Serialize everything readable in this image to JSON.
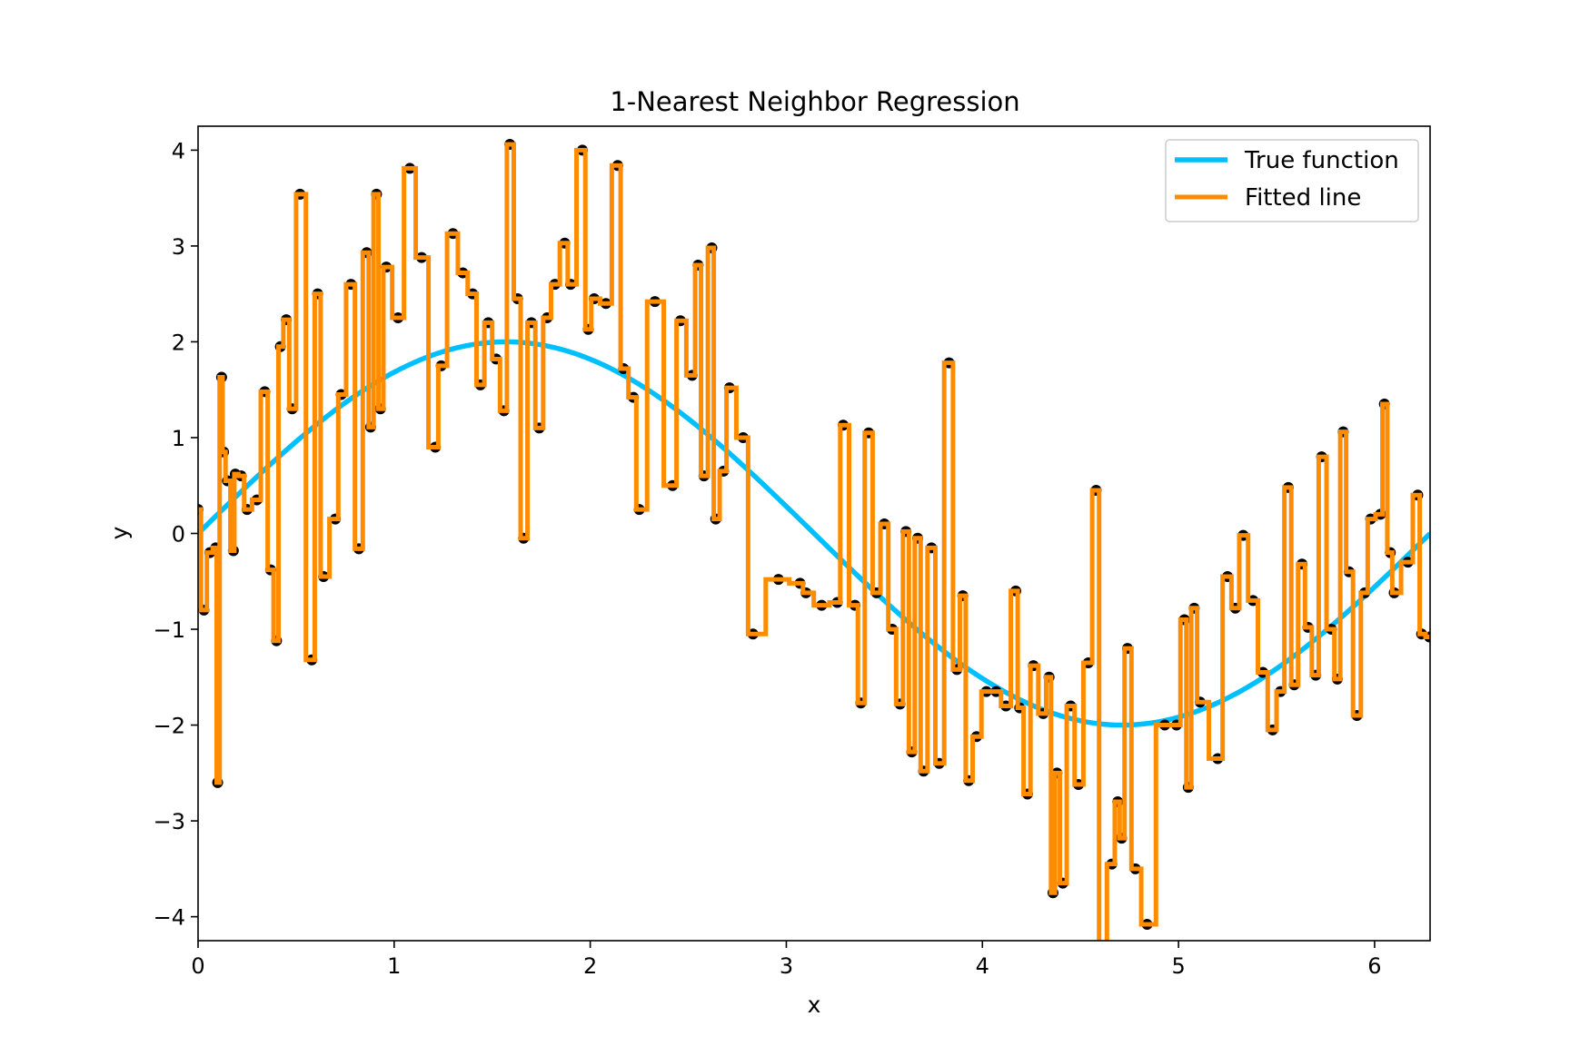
{
  "chart_data": {
    "type": "line",
    "title": "1-Nearest Neighbor Regression",
    "xlabel": "x",
    "ylabel": "y",
    "xlim": [
      0,
      6.283
    ],
    "ylim": [
      -4.25,
      4.25
    ],
    "xticks": [
      0,
      1,
      2,
      3,
      4,
      5,
      6
    ],
    "xtick_labels": [
      "0",
      "1",
      "2",
      "3",
      "4",
      "5",
      "6"
    ],
    "yticks": [
      -4,
      -3,
      -2,
      -1,
      0,
      1,
      2,
      3,
      4
    ],
    "ytick_labels": [
      "−4",
      "−3",
      "−2",
      "−1",
      "0",
      "1",
      "2",
      "3",
      "4"
    ],
    "grid": false,
    "legend_position": "upper-right",
    "series": [
      {
        "name": "True function",
        "kind": "line",
        "color": "#00bfff",
        "function": "2*sin(x)"
      },
      {
        "name": "Fitted line",
        "kind": "step",
        "color": "#ff8c00"
      },
      {
        "kind": "scatter",
        "color": "#000000"
      }
    ],
    "points": [
      [
        0.0,
        0.25
      ],
      [
        0.03,
        -0.8
      ],
      [
        0.06,
        -0.2
      ],
      [
        0.09,
        -0.15
      ],
      [
        0.1,
        -2.6
      ],
      [
        0.12,
        1.63
      ],
      [
        0.13,
        0.85
      ],
      [
        0.15,
        0.55
      ],
      [
        0.18,
        -0.18
      ],
      [
        0.19,
        0.62
      ],
      [
        0.22,
        0.6
      ],
      [
        0.25,
        0.25
      ],
      [
        0.3,
        0.35
      ],
      [
        0.34,
        1.48
      ],
      [
        0.37,
        -0.38
      ],
      [
        0.4,
        -1.12
      ],
      [
        0.42,
        1.95
      ],
      [
        0.45,
        2.23
      ],
      [
        0.48,
        1.3
      ],
      [
        0.52,
        3.54
      ],
      [
        0.58,
        -1.32
      ],
      [
        0.61,
        2.5
      ],
      [
        0.64,
        -0.45
      ],
      [
        0.7,
        0.15
      ],
      [
        0.73,
        1.45
      ],
      [
        0.78,
        2.6
      ],
      [
        0.82,
        -0.16
      ],
      [
        0.86,
        2.93
      ],
      [
        0.88,
        1.11
      ],
      [
        0.91,
        3.54
      ],
      [
        0.93,
        1.3
      ],
      [
        0.96,
        2.78
      ],
      [
        1.02,
        2.25
      ],
      [
        1.08,
        3.81
      ],
      [
        1.14,
        2.88
      ],
      [
        1.21,
        0.9
      ],
      [
        1.24,
        1.75
      ],
      [
        1.3,
        3.13
      ],
      [
        1.35,
        2.72
      ],
      [
        1.4,
        2.5
      ],
      [
        1.44,
        1.55
      ],
      [
        1.48,
        2.2
      ],
      [
        1.52,
        1.82
      ],
      [
        1.56,
        1.28
      ],
      [
        1.59,
        4.06
      ],
      [
        1.63,
        2.45
      ],
      [
        1.66,
        -0.05
      ],
      [
        1.7,
        2.2
      ],
      [
        1.74,
        1.1
      ],
      [
        1.78,
        2.25
      ],
      [
        1.82,
        2.6
      ],
      [
        1.87,
        3.03
      ],
      [
        1.9,
        2.6
      ],
      [
        1.96,
        4.0
      ],
      [
        1.99,
        2.13
      ],
      [
        2.02,
        2.45
      ],
      [
        2.08,
        2.4
      ],
      [
        2.14,
        3.84
      ],
      [
        2.17,
        1.72
      ],
      [
        2.22,
        1.42
      ],
      [
        2.25,
        0.25
      ],
      [
        2.33,
        2.42
      ],
      [
        2.42,
        0.5
      ],
      [
        2.46,
        2.22
      ],
      [
        2.52,
        1.65
      ],
      [
        2.55,
        2.8
      ],
      [
        2.58,
        0.6
      ],
      [
        2.62,
        2.98
      ],
      [
        2.64,
        0.15
      ],
      [
        2.68,
        0.65
      ],
      [
        2.71,
        1.52
      ],
      [
        2.78,
        1.0
      ],
      [
        2.83,
        -1.05
      ],
      [
        2.96,
        -0.48
      ],
      [
        3.07,
        -0.52
      ],
      [
        3.1,
        -0.62
      ],
      [
        3.18,
        -0.75
      ],
      [
        3.26,
        -0.72
      ],
      [
        3.29,
        1.13
      ],
      [
        3.35,
        -0.75
      ],
      [
        3.38,
        -1.77
      ],
      [
        3.42,
        1.05
      ],
      [
        3.46,
        -0.62
      ],
      [
        3.5,
        0.1
      ],
      [
        3.54,
        -1.0
      ],
      [
        3.58,
        -1.78
      ],
      [
        3.61,
        0.02
      ],
      [
        3.64,
        -2.28
      ],
      [
        3.67,
        -0.05
      ],
      [
        3.7,
        -2.48
      ],
      [
        3.74,
        -0.15
      ],
      [
        3.78,
        -2.4
      ],
      [
        3.83,
        1.78
      ],
      [
        3.87,
        -1.42
      ],
      [
        3.9,
        -0.65
      ],
      [
        3.93,
        -2.58
      ],
      [
        3.97,
        -2.12
      ],
      [
        4.02,
        -1.65
      ],
      [
        4.07,
        -1.65
      ],
      [
        4.12,
        -1.8
      ],
      [
        4.17,
        -0.6
      ],
      [
        4.19,
        -1.82
      ],
      [
        4.23,
        -2.72
      ],
      [
        4.26,
        -1.38
      ],
      [
        4.31,
        -1.88
      ],
      [
        4.34,
        -1.5
      ],
      [
        4.36,
        -3.75
      ],
      [
        4.38,
        -2.5
      ],
      [
        4.41,
        -3.65
      ],
      [
        4.45,
        -1.8
      ],
      [
        4.49,
        -2.62
      ],
      [
        4.54,
        -1.35
      ],
      [
        4.58,
        0.45
      ],
      [
        4.61,
        -4.6
      ],
      [
        4.66,
        -3.45
      ],
      [
        4.69,
        -2.8
      ],
      [
        4.71,
        -3.18
      ],
      [
        4.74,
        -1.2
      ],
      [
        4.78,
        -3.5
      ],
      [
        4.84,
        -4.08
      ],
      [
        4.93,
        -2.0
      ],
      [
        4.99,
        -2.0
      ],
      [
        5.03,
        -0.9
      ],
      [
        5.05,
        -2.65
      ],
      [
        5.08,
        -0.78
      ],
      [
        5.11,
        -1.76
      ],
      [
        5.2,
        -2.35
      ],
      [
        5.25,
        -0.45
      ],
      [
        5.29,
        -0.78
      ],
      [
        5.33,
        -0.02
      ],
      [
        5.38,
        -0.7
      ],
      [
        5.43,
        -1.45
      ],
      [
        5.48,
        -2.05
      ],
      [
        5.52,
        -1.65
      ],
      [
        5.56,
        0.48
      ],
      [
        5.59,
        -1.58
      ],
      [
        5.63,
        -0.32
      ],
      [
        5.66,
        -0.98
      ],
      [
        5.7,
        -1.48
      ],
      [
        5.73,
        0.8
      ],
      [
        5.78,
        -1.0
      ],
      [
        5.81,
        -1.52
      ],
      [
        5.84,
        1.06
      ],
      [
        5.87,
        -0.4
      ],
      [
        5.91,
        -1.9
      ],
      [
        5.95,
        -0.62
      ],
      [
        5.98,
        0.15
      ],
      [
        6.03,
        0.2
      ],
      [
        6.05,
        1.35
      ],
      [
        6.08,
        -0.2
      ],
      [
        6.1,
        -0.62
      ],
      [
        6.17,
        -0.3
      ],
      [
        6.22,
        0.4
      ],
      [
        6.24,
        -1.05
      ],
      [
        6.28,
        -1.08
      ]
    ]
  }
}
